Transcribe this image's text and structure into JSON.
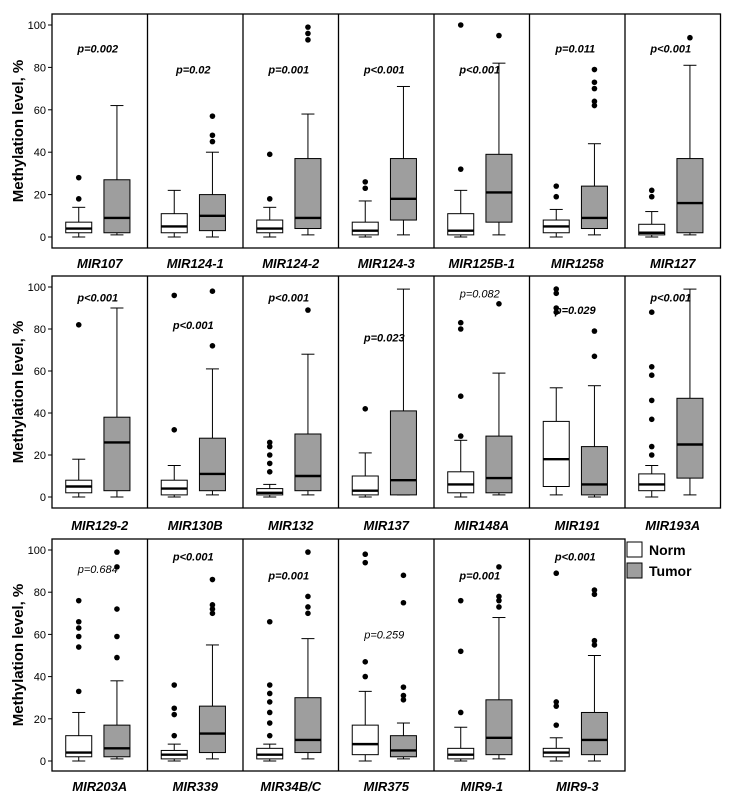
{
  "chart_data": {
    "type": "boxplot",
    "ylabel": "Methylation level, %",
    "ylim": [
      0,
      100
    ],
    "yticks": [
      0,
      20,
      40,
      60,
      80,
      100
    ],
    "legend": {
      "position": "top-right of bottom row",
      "items": [
        {
          "label": "Norm",
          "color": "#ffffff"
        },
        {
          "label": "Tumor",
          "color": "#9e9e9e"
        }
      ]
    },
    "panels": [
      {
        "genes": [
          {
            "name": "MIR107",
            "p": "p=0.002",
            "p_sig": true,
            "p_y": 89,
            "norm": {
              "min": 0,
              "q1": 2,
              "median": 4,
              "q3": 7,
              "max": 14,
              "outliers": [
                18,
                28
              ]
            },
            "tumor": {
              "min": 1,
              "q1": 2,
              "median": 9,
              "q3": 27,
              "max": 62,
              "outliers": []
            }
          },
          {
            "name": "MIR124-1",
            "p": "p=0.02",
            "p_sig": true,
            "p_y": 79,
            "norm": {
              "min": 0,
              "q1": 2,
              "median": 5,
              "q3": 11,
              "max": 22,
              "outliers": []
            },
            "tumor": {
              "min": 0,
              "q1": 3,
              "median": 10,
              "q3": 20,
              "max": 40,
              "outliers": [
                45,
                48,
                57
              ]
            }
          },
          {
            "name": "MIR124-2",
            "p": "p=0.001",
            "p_sig": true,
            "p_y": 79,
            "norm": {
              "min": 0,
              "q1": 2,
              "median": 4,
              "q3": 8,
              "max": 14,
              "outliers": [
                18,
                39
              ]
            },
            "tumor": {
              "min": 1,
              "q1": 4,
              "median": 9,
              "q3": 37,
              "max": 58,
              "outliers": [
                93,
                96,
                99
              ]
            }
          },
          {
            "name": "MIR124-3",
            "p": "p<0.001",
            "p_sig": true,
            "p_y": 79,
            "norm": {
              "min": 0,
              "q1": 1,
              "median": 3,
              "q3": 7,
              "max": 17,
              "outliers": [
                23,
                26
              ]
            },
            "tumor": {
              "min": 1,
              "q1": 8,
              "median": 18,
              "q3": 37,
              "max": 71,
              "outliers": []
            }
          },
          {
            "name": "MIR125B-1",
            "p": "p<0.001",
            "p_sig": true,
            "p_y": 79,
            "norm": {
              "min": 0,
              "q1": 1,
              "median": 3,
              "q3": 11,
              "max": 22,
              "outliers": [
                32,
                100
              ]
            },
            "tumor": {
              "min": 1,
              "q1": 7,
              "median": 21,
              "q3": 39,
              "max": 82,
              "outliers": [
                95
              ]
            }
          },
          {
            "name": "MIR1258",
            "p": "p=0.011",
            "p_sig": true,
            "p_y": 89,
            "norm": {
              "min": 0,
              "q1": 2,
              "median": 5,
              "q3": 8,
              "max": 13,
              "outliers": [
                19,
                24
              ]
            },
            "tumor": {
              "min": 1,
              "q1": 4,
              "median": 9,
              "q3": 24,
              "max": 44,
              "outliers": [
                62,
                64,
                70,
                73,
                79
              ]
            }
          },
          {
            "name": "MIR127",
            "p": "p<0.001",
            "p_sig": true,
            "p_y": 89,
            "norm": {
              "min": 0,
              "q1": 1,
              "median": 2,
              "q3": 6,
              "max": 12,
              "outliers": [
                19,
                22
              ]
            },
            "tumor": {
              "min": 1,
              "q1": 2,
              "median": 16,
              "q3": 37,
              "max": 81,
              "outliers": [
                94
              ]
            }
          }
        ]
      },
      {
        "genes": [
          {
            "name": "MIR129-2",
            "p": "p<0.001",
            "p_sig": true,
            "p_y": 95,
            "norm": {
              "min": 0,
              "q1": 2,
              "median": 5,
              "q3": 8,
              "max": 18,
              "outliers": [
                82
              ]
            },
            "tumor": {
              "min": 0,
              "q1": 3,
              "median": 26,
              "q3": 38,
              "max": 90,
              "outliers": []
            }
          },
          {
            "name": "MIR130B",
            "p": "p<0.001",
            "p_sig": true,
            "p_y": 82,
            "norm": {
              "min": 0,
              "q1": 1,
              "median": 4,
              "q3": 8,
              "max": 15,
              "outliers": [
                32,
                96
              ]
            },
            "tumor": {
              "min": 1,
              "q1": 3,
              "median": 11,
              "q3": 28,
              "max": 61,
              "outliers": [
                72,
                98
              ]
            }
          },
          {
            "name": "MIR132",
            "p": "p<0.001",
            "p_sig": true,
            "p_y": 95,
            "norm": {
              "min": 0,
              "q1": 1,
              "median": 2,
              "q3": 4,
              "max": 6,
              "outliers": [
                12,
                16,
                20,
                24,
                26
              ]
            },
            "tumor": {
              "min": 1,
              "q1": 3,
              "median": 10,
              "q3": 30,
              "max": 68,
              "outliers": [
                89
              ]
            }
          },
          {
            "name": "MIR137",
            "p": "p=0.023",
            "p_sig": true,
            "p_y": 76,
            "norm": {
              "min": 0,
              "q1": 1,
              "median": 3,
              "q3": 10,
              "max": 21,
              "outliers": [
                42
              ]
            },
            "tumor": {
              "min": 1,
              "q1": 1,
              "median": 8,
              "q3": 41,
              "max": 99,
              "outliers": []
            }
          },
          {
            "name": "MIR148A",
            "p": "p=0.082",
            "p_sig": false,
            "p_y": 97,
            "norm": {
              "min": 0,
              "q1": 2,
              "median": 6,
              "q3": 12,
              "max": 27,
              "outliers": [
                29,
                48,
                80,
                83
              ]
            },
            "tumor": {
              "min": 1,
              "q1": 2,
              "median": 9,
              "q3": 29,
              "max": 59,
              "outliers": [
                92
              ]
            }
          },
          {
            "name": "MIR191",
            "p": "p=0.029",
            "p_sig": true,
            "p_y": 89,
            "norm": {
              "min": 1,
              "q1": 5,
              "median": 18,
              "q3": 36,
              "max": 52,
              "outliers": [
                88,
                90,
                97,
                99
              ]
            },
            "tumor": {
              "min": 0,
              "q1": 1,
              "median": 6,
              "q3": 24,
              "max": 53,
              "outliers": [
                67,
                79
              ]
            }
          },
          {
            "name": "MIR193A",
            "p": "p<0.001",
            "p_sig": true,
            "p_y": 95,
            "norm": {
              "min": 0,
              "q1": 3,
              "median": 6,
              "q3": 11,
              "max": 15,
              "outliers": [
                20,
                24,
                37,
                46,
                58,
                62,
                88
              ]
            },
            "tumor": {
              "min": 1,
              "q1": 9,
              "median": 25,
              "q3": 47,
              "max": 99,
              "outliers": []
            }
          }
        ]
      },
      {
        "genes": [
          {
            "name": "MIR203A",
            "p": "p=0.684",
            "p_sig": false,
            "p_y": 91,
            "norm": {
              "min": 0,
              "q1": 2,
              "median": 4,
              "q3": 12,
              "max": 23,
              "outliers": [
                33,
                54,
                59,
                63,
                66,
                76
              ]
            },
            "tumor": {
              "min": 1,
              "q1": 2,
              "median": 6,
              "q3": 17,
              "max": 38,
              "outliers": [
                49,
                59,
                72,
                92,
                99
              ]
            }
          },
          {
            "name": "MIR339",
            "p": "p<0.001",
            "p_sig": true,
            "p_y": 97,
            "norm": {
              "min": 0,
              "q1": 1,
              "median": 3,
              "q3": 5,
              "max": 8,
              "outliers": [
                12,
                22,
                25,
                36
              ]
            },
            "tumor": {
              "min": 1,
              "q1": 4,
              "median": 13,
              "q3": 26,
              "max": 55,
              "outliers": [
                70,
                72,
                74,
                86
              ]
            }
          },
          {
            "name": "MIR34B/C",
            "p": "p=0.001",
            "p_sig": true,
            "p_y": 88,
            "norm": {
              "min": 0,
              "q1": 1,
              "median": 3,
              "q3": 6,
              "max": 8,
              "outliers": [
                12,
                18,
                23,
                28,
                32,
                36,
                66
              ]
            },
            "tumor": {
              "min": 1,
              "q1": 4,
              "median": 10,
              "q3": 30,
              "max": 58,
              "outliers": [
                70,
                73,
                78,
                99
              ]
            }
          },
          {
            "name": "MIR375",
            "p": "p=0.259",
            "p_sig": false,
            "p_y": 60,
            "norm": {
              "min": 0,
              "q1": 3,
              "median": 8,
              "q3": 17,
              "max": 33,
              "outliers": [
                40,
                47,
                94,
                98
              ]
            },
            "tumor": {
              "min": 1,
              "q1": 2,
              "median": 5,
              "q3": 12,
              "max": 18,
              "outliers": [
                29,
                31,
                35,
                75,
                88
              ]
            }
          },
          {
            "name": "MIR9-1",
            "p": "p=0.001",
            "p_sig": true,
            "p_y": 88,
            "norm": {
              "min": 0,
              "q1": 1,
              "median": 3,
              "q3": 6,
              "max": 16,
              "outliers": [
                23,
                52,
                76
              ]
            },
            "tumor": {
              "min": 1,
              "q1": 3,
              "median": 11,
              "q3": 29,
              "max": 68,
              "outliers": [
                73,
                76,
                78,
                92
              ]
            }
          },
          {
            "name": "MIR9-3",
            "p": "p<0.001",
            "p_sig": true,
            "p_y": 97,
            "norm": {
              "min": 0,
              "q1": 2,
              "median": 4,
              "q3": 6,
              "max": 11,
              "outliers": [
                17,
                26,
                28,
                89
              ]
            },
            "tumor": {
              "min": 0,
              "q1": 3,
              "median": 10,
              "q3": 23,
              "max": 50,
              "outliers": [
                55,
                57,
                79,
                81
              ]
            }
          }
        ]
      }
    ]
  }
}
